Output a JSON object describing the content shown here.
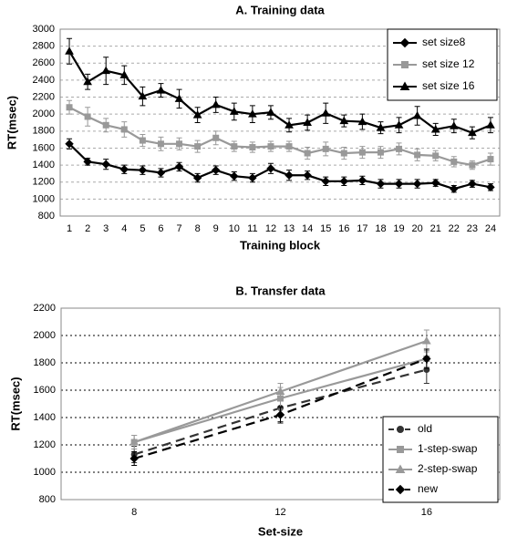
{
  "chart_data": [
    {
      "type": "line",
      "title": "A. Training data",
      "x_label": "Training block",
      "y_label": "RT(msec)",
      "categories": [
        "1",
        "2",
        "3",
        "4",
        "5",
        "6",
        "7",
        "8",
        "9",
        "10",
        "11",
        "12",
        "13",
        "14",
        "15",
        "16",
        "17",
        "18",
        "19",
        "20",
        "21",
        "22",
        "23",
        "24"
      ],
      "ylim": [
        800,
        3000
      ],
      "yticks": [
        800,
        1000,
        1200,
        1400,
        1600,
        1800,
        2000,
        2200,
        2400,
        2600,
        2800,
        3000
      ],
      "grid": true,
      "legend": "top-right",
      "series": [
        {
          "name": "set size8",
          "color": "#000000",
          "marker": "diamond",
          "linestyle": "solid",
          "values": [
            1650,
            1440,
            1410,
            1350,
            1340,
            1310,
            1380,
            1250,
            1340,
            1270,
            1250,
            1360,
            1280,
            1280,
            1210,
            1210,
            1220,
            1180,
            1180,
            1180,
            1190,
            1120,
            1180,
            1140
          ],
          "errors": [
            60,
            40,
            60,
            50,
            50,
            50,
            50,
            50,
            50,
            50,
            50,
            60,
            60,
            50,
            50,
            50,
            50,
            50,
            50,
            50,
            40,
            40,
            40,
            40
          ]
        },
        {
          "name": "set size 12",
          "color": "#999999",
          "marker": "square",
          "linestyle": "solid",
          "values": [
            2080,
            1970,
            1870,
            1820,
            1690,
            1650,
            1650,
            1620,
            1720,
            1620,
            1610,
            1620,
            1620,
            1540,
            1590,
            1540,
            1550,
            1550,
            1590,
            1520,
            1510,
            1440,
            1400,
            1470
          ],
          "errors": [
            80,
            110,
            80,
            90,
            70,
            80,
            70,
            70,
            80,
            60,
            60,
            60,
            60,
            70,
            80,
            70,
            70,
            70,
            70,
            70,
            60,
            60,
            50,
            70
          ]
        },
        {
          "name": "set size 16",
          "color": "#000000",
          "marker": "triangle",
          "linestyle": "solid",
          "values": [
            2740,
            2380,
            2510,
            2460,
            2210,
            2280,
            2180,
            1990,
            2110,
            2030,
            2000,
            2020,
            1870,
            1900,
            2010,
            1920,
            1910,
            1840,
            1870,
            1980,
            1820,
            1860,
            1780,
            1870
          ],
          "errors": [
            150,
            90,
            160,
            110,
            110,
            80,
            110,
            90,
            90,
            100,
            100,
            80,
            80,
            90,
            120,
            70,
            90,
            70,
            90,
            110,
            70,
            80,
            70,
            90
          ]
        }
      ]
    },
    {
      "type": "line",
      "title": "B. Transfer data",
      "x_label": "Set-size",
      "y_label": "RT(msec)",
      "categories": [
        "8",
        "12",
        "16"
      ],
      "ylim": [
        800,
        2200
      ],
      "yticks": [
        800,
        1000,
        1200,
        1400,
        1600,
        1800,
        2000,
        2200
      ],
      "grid": true,
      "legend": "bottom-right",
      "series": [
        {
          "name": "old",
          "color": "#333333",
          "marker": "circle",
          "linestyle": "dashed",
          "values": [
            1130,
            1470,
            1750
          ],
          "errors": [
            60,
            100,
            100
          ]
        },
        {
          "name": "1-step-swap",
          "color": "#999999",
          "marker": "square",
          "linestyle": "solid",
          "values": [
            1220,
            1540,
            1830
          ],
          "errors": [
            50,
            80,
            60
          ]
        },
        {
          "name": "2-step-swap",
          "color": "#999999",
          "marker": "triangle",
          "linestyle": "solid",
          "values": [
            1220,
            1590,
            1960
          ],
          "errors": [
            50,
            60,
            80
          ]
        },
        {
          "name": "new",
          "color": "#000000",
          "marker": "diamond",
          "linestyle": "dashed",
          "values": [
            1100,
            1420,
            1830
          ],
          "errors": [
            50,
            60,
            70
          ]
        }
      ]
    }
  ]
}
